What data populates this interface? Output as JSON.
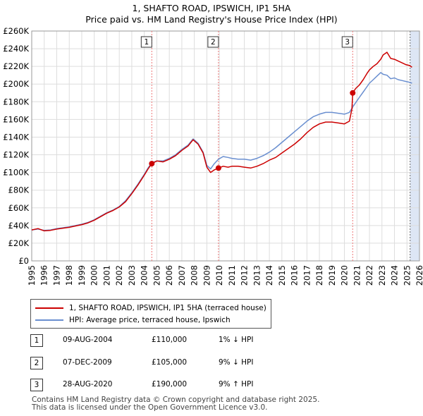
{
  "title_line1": "1, SHAFTO ROAD, IPSWICH, IP1 5HA",
  "title_line2": "Price paid vs. HM Land Registry's House Price Index (HPI)",
  "colors": {
    "price_line": "#cc0000",
    "hpi_line": "#6a8fd0",
    "marker_line": "#ee7777",
    "future_fill": "#dde6f5"
  },
  "chart_data": {
    "type": "line",
    "xlabel": "",
    "ylabel": "",
    "xlim": [
      1995,
      2026
    ],
    "ylim": [
      0,
      260000
    ],
    "yticks": [
      0,
      20000,
      40000,
      60000,
      80000,
      100000,
      120000,
      140000,
      160000,
      180000,
      200000,
      220000,
      240000,
      260000
    ],
    "ytick_labels": [
      "£0",
      "£20K",
      "£40K",
      "£60K",
      "£80K",
      "£100K",
      "£120K",
      "£140K",
      "£160K",
      "£180K",
      "£200K",
      "£220K",
      "£240K",
      "£260K"
    ],
    "xticks": [
      1995,
      1996,
      1997,
      1998,
      1999,
      2000,
      2001,
      2002,
      2003,
      2004,
      2005,
      2006,
      2007,
      2008,
      2009,
      2010,
      2011,
      2012,
      2013,
      2014,
      2015,
      2016,
      2017,
      2018,
      2019,
      2020,
      2021,
      2022,
      2023,
      2024,
      2025,
      2026
    ],
    "xtick_labels": [
      "1995",
      "1996",
      "1997",
      "1998",
      "1999",
      "2000",
      "2001",
      "2002",
      "2003",
      "2004",
      "2005",
      "2006",
      "2007",
      "2008",
      "2009",
      "2010",
      "2011",
      "2012",
      "2013",
      "2014",
      "2015",
      "2016",
      "2017",
      "2018",
      "2019",
      "2020",
      "2021",
      "2022",
      "2023",
      "2024",
      "2025",
      "2026"
    ],
    "grid": true,
    "future_shade_from": 2025.25,
    "series": [
      {
        "name": "1, SHAFTO ROAD, IPSWICH, IP1 5HA (terraced house)",
        "color": "#cc0000",
        "x": [
          1995.0,
          1995.5,
          1996.0,
          1996.5,
          1997.0,
          1997.5,
          1998.0,
          1998.5,
          1999.0,
          1999.5,
          2000.0,
          2000.5,
          2001.0,
          2001.5,
          2002.0,
          2002.5,
          2003.0,
          2003.5,
          2004.0,
          2004.3,
          2004.6,
          2005.0,
          2005.5,
          2006.0,
          2006.5,
          2007.0,
          2007.5,
          2007.9,
          2008.3,
          2008.7,
          2009.0,
          2009.3,
          2009.6,
          2009.93,
          2010.3,
          2010.7,
          2011.0,
          2011.5,
          2012.0,
          2012.5,
          2013.0,
          2013.5,
          2014.0,
          2014.5,
          2015.0,
          2015.5,
          2016.0,
          2016.5,
          2017.0,
          2017.5,
          2018.0,
          2018.5,
          2019.0,
          2019.5,
          2020.0,
          2020.4,
          2020.6,
          2020.66,
          2020.9,
          2021.2,
          2021.5,
          2021.8,
          2022.0,
          2022.3,
          2022.6,
          2022.9,
          2023.1,
          2023.4,
          2023.7,
          2024.0,
          2024.3,
          2024.6,
          2024.9,
          2025.2,
          2025.4
        ],
        "values": [
          35000,
          36500,
          34000,
          34500,
          36000,
          37000,
          38000,
          39500,
          41000,
          43000,
          46000,
          50000,
          54000,
          57000,
          61000,
          67000,
          76000,
          86000,
          97000,
          104000,
          110000,
          113000,
          112000,
          115000,
          119000,
          125000,
          130000,
          137000,
          132000,
          122000,
          106000,
          100000,
          103000,
          105000,
          107000,
          106000,
          107000,
          107000,
          106000,
          105000,
          107000,
          110000,
          114000,
          117000,
          122000,
          127000,
          132000,
          138000,
          145000,
          151000,
          155000,
          157000,
          157000,
          156000,
          155000,
          158000,
          172000,
          190000,
          195000,
          199000,
          205000,
          212000,
          216000,
          220000,
          223000,
          228000,
          233000,
          236000,
          229000,
          228000,
          226000,
          224000,
          222000,
          221000,
          219000
        ]
      },
      {
        "name": "HPI: Average price, terraced house, Ipswich",
        "color": "#6a8fd0",
        "x": [
          1995.0,
          1995.5,
          1996.0,
          1996.5,
          1997.0,
          1997.5,
          1998.0,
          1998.5,
          1999.0,
          1999.5,
          2000.0,
          2000.5,
          2001.0,
          2001.5,
          2002.0,
          2002.5,
          2003.0,
          2003.5,
          2004.0,
          2004.3,
          2004.6,
          2005.0,
          2005.5,
          2006.0,
          2006.5,
          2007.0,
          2007.5,
          2007.9,
          2008.3,
          2008.7,
          2009.0,
          2009.3,
          2009.6,
          2009.93,
          2010.3,
          2010.7,
          2011.0,
          2011.5,
          2012.0,
          2012.5,
          2013.0,
          2013.5,
          2014.0,
          2014.5,
          2015.0,
          2015.5,
          2016.0,
          2016.5,
          2017.0,
          2017.5,
          2018.0,
          2018.5,
          2019.0,
          2019.5,
          2020.0,
          2020.4,
          2020.66,
          2020.9,
          2021.2,
          2021.5,
          2021.8,
          2022.0,
          2022.3,
          2022.6,
          2022.9,
          2023.1,
          2023.4,
          2023.7,
          2024.0,
          2024.3,
          2024.6,
          2024.9,
          2025.2,
          2025.4
        ],
        "values": [
          35000,
          36000,
          34500,
          35000,
          36500,
          37500,
          38500,
          40000,
          41500,
          43500,
          46500,
          50500,
          54500,
          57500,
          61500,
          68000,
          77000,
          87000,
          98000,
          105000,
          111000,
          113000,
          113000,
          116000,
          120000,
          126000,
          131000,
          138000,
          133000,
          123000,
          108000,
          104000,
          110000,
          115000,
          118000,
          117000,
          116000,
          115000,
          115000,
          114000,
          116000,
          119000,
          123000,
          128000,
          134000,
          140000,
          146000,
          152000,
          158000,
          163000,
          166000,
          168000,
          168000,
          167000,
          166000,
          168000,
          174000,
          179000,
          185000,
          191000,
          197000,
          201000,
          205000,
          209000,
          213000,
          211000,
          210000,
          206000,
          207000,
          205000,
          204000,
          203000,
          202000,
          201000
        ]
      }
    ],
    "markers": [
      {
        "label": "1",
        "x": 2004.6,
        "value": 110000
      },
      {
        "label": "2",
        "x": 2009.93,
        "value": 105000
      },
      {
        "label": "3",
        "x": 2020.66,
        "value": 190000
      }
    ]
  },
  "legend": {
    "price_label": "1, SHAFTO ROAD, IPSWICH, IP1 5HA (terraced house)",
    "hpi_label": "HPI: Average price, terraced house, Ipswich"
  },
  "transactions": [
    {
      "num": "1",
      "date": "09-AUG-2004",
      "price": "£110,000",
      "hpi": "1% ↓ HPI"
    },
    {
      "num": "2",
      "date": "07-DEC-2009",
      "price": "£105,000",
      "hpi": "9% ↓ HPI"
    },
    {
      "num": "3",
      "date": "28-AUG-2020",
      "price": "£190,000",
      "hpi": "9% ↑ HPI"
    }
  ],
  "footer_line1": "Contains HM Land Registry data © Crown copyright and database right 2025.",
  "footer_line2": "This data is licensed under the Open Government Licence v3.0."
}
